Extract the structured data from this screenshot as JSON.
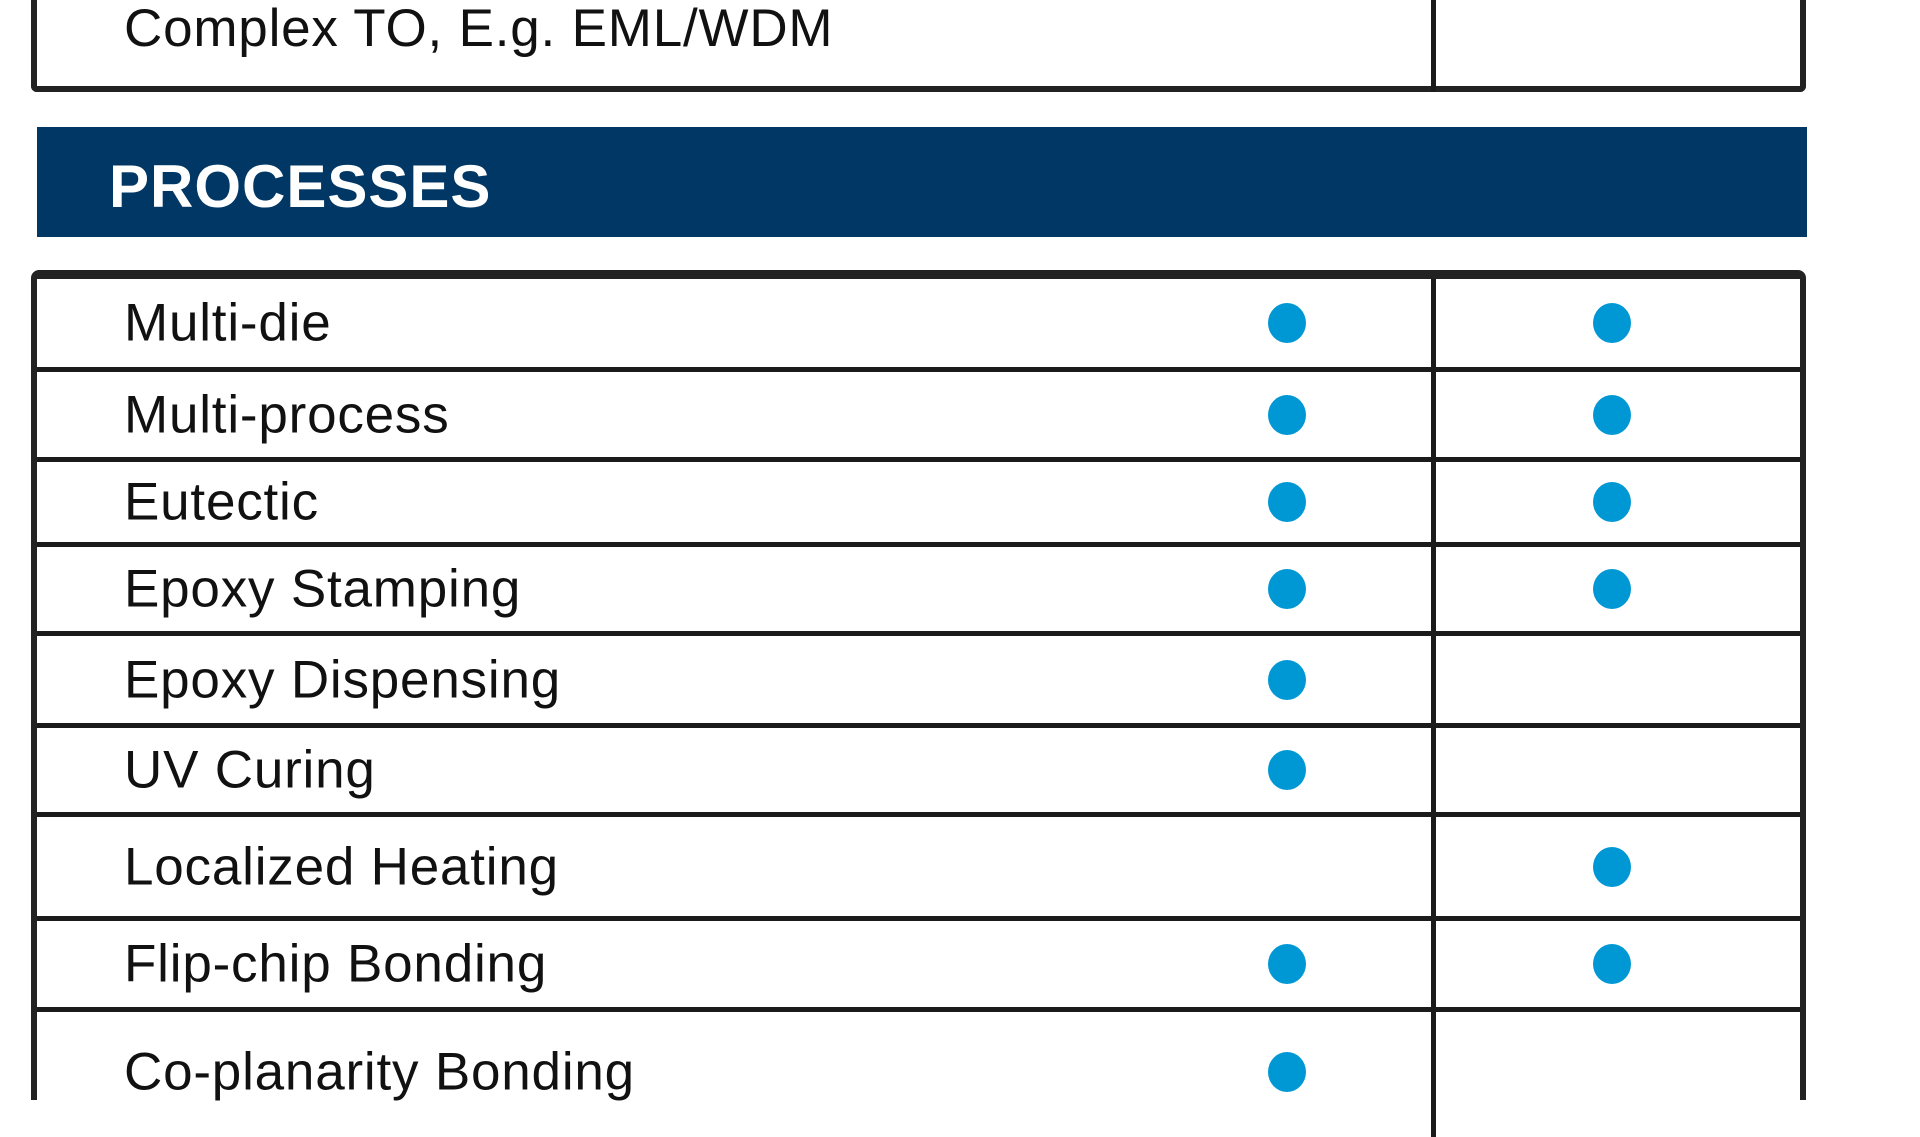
{
  "top_row": {
    "label": "Complex TO, E.g. EML/WDM",
    "col1": false,
    "col2": false
  },
  "section": {
    "title": "PROCESSES",
    "color": "#003764"
  },
  "dot_color": "#0098d4",
  "dot_icon": "filled-circle",
  "rows": [
    {
      "label": "Multi-die",
      "col1": true,
      "col2": true
    },
    {
      "label": "Multi-process",
      "col1": true,
      "col2": true
    },
    {
      "label": "Eutectic",
      "col1": true,
      "col2": true
    },
    {
      "label": "Epoxy Stamping",
      "col1": true,
      "col2": true
    },
    {
      "label": "Epoxy Dispensing",
      "col1": true,
      "col2": false
    },
    {
      "label": "UV Curing",
      "col1": true,
      "col2": false
    },
    {
      "label": "Localized Heating",
      "col1": false,
      "col2": true
    },
    {
      "label": "Flip-chip Bonding",
      "col1": true,
      "col2": true
    },
    {
      "label": "Co-planarity Bonding",
      "col1": true,
      "col2": false
    }
  ]
}
